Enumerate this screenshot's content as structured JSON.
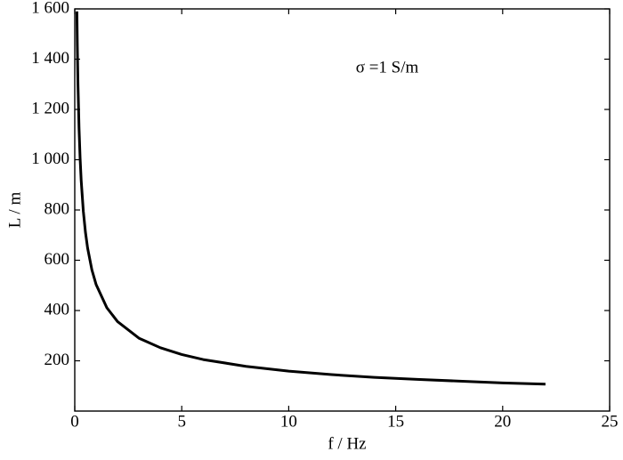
{
  "chart_data": {
    "type": "line",
    "x_label": "f / Hz",
    "y_label": "L / m",
    "annotation": "σ =1 S/m",
    "x": [
      0.1,
      0.12,
      0.15,
      0.2,
      0.25,
      0.3,
      0.4,
      0.5,
      0.6,
      0.8,
      1,
      1.5,
      2,
      3,
      4,
      5,
      6,
      8,
      10,
      12,
      14,
      16,
      18,
      20,
      22
    ],
    "series": [
      {
        "color": "#000000",
        "values": [
          1590,
          1452,
          1299,
          1125,
          1006,
          918,
          795,
          711,
          649,
          562,
          503,
          411,
          356,
          290,
          252,
          225,
          205,
          178,
          159,
          145,
          134,
          126,
          119,
          112,
          107
        ]
      }
    ],
    "xlim": [
      0,
      25
    ],
    "xticks": [
      0,
      5,
      10,
      15,
      20,
      25
    ],
    "ylim": [
      0,
      1600
    ],
    "yticks": [
      200,
      400,
      600,
      800,
      {
        "value": 1000,
        "label": "1 000"
      },
      {
        "value": 1200,
        "label": "1 200"
      },
      {
        "value": 1400,
        "label": "1 400"
      },
      {
        "value": 1600,
        "label": "1 600"
      }
    ]
  }
}
